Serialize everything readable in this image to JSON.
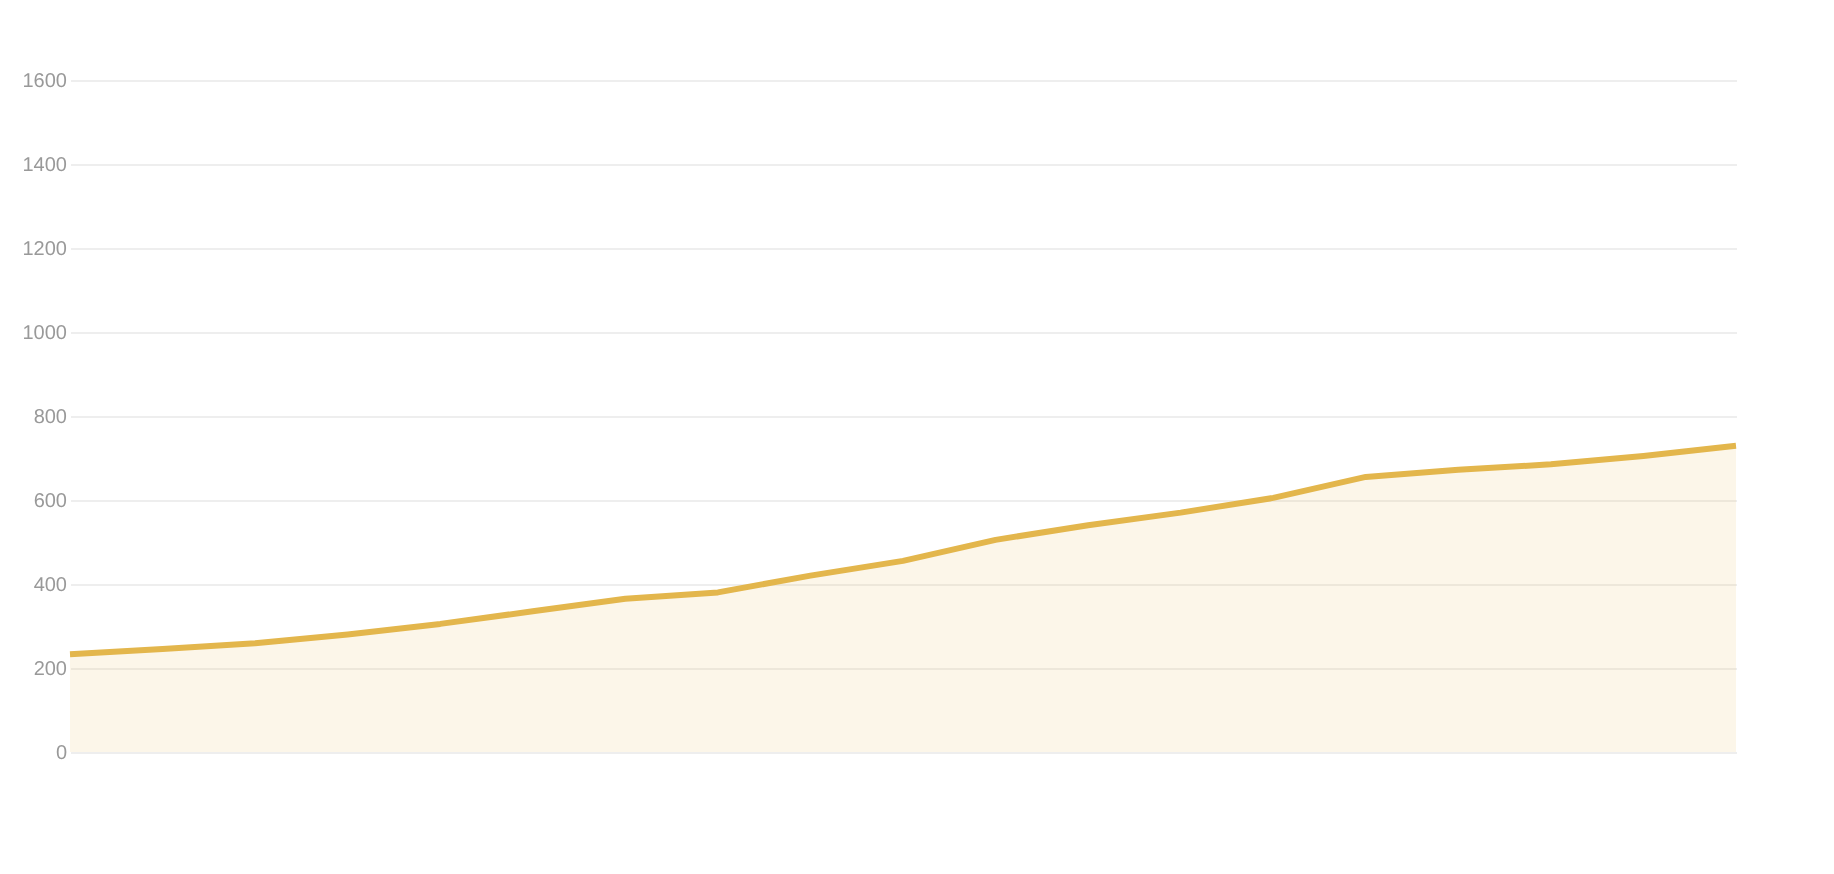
{
  "chart_data": {
    "type": "area",
    "categories": [
      null,
      null,
      null,
      null,
      null,
      null,
      null,
      null,
      null,
      null,
      null,
      null,
      null,
      null,
      null,
      null,
      null,
      null,
      null
    ],
    "series": [
      {
        "color": "#e3b64c",
        "values": [
          233,
          245,
          259,
          280,
          305,
          335,
          365,
          380,
          420,
          455,
          505,
          540,
          570,
          605,
          655,
          672,
          685,
          705,
          729
        ]
      }
    ],
    "ylim": [
      0,
      1600
    ],
    "yticks": [
      0,
      200,
      400,
      600,
      800,
      1000,
      1200,
      1400,
      1600
    ],
    "grid": "y"
  }
}
